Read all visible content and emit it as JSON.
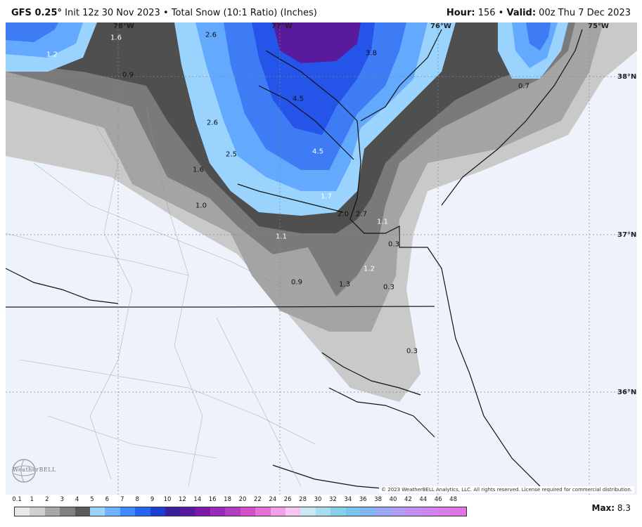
{
  "header": {
    "model": "GFS 0.25°",
    "init": "Init 12z 30 Nov 2023",
    "product": "Total Snow (10:1 Ratio) (Inches)",
    "hour_label": "Hour:",
    "hour_value": "156",
    "valid_label": "Valid:",
    "valid_value": "00z Thu 7 Dec 2023",
    "sep": "•"
  },
  "coords": {
    "lon_78": "78°W",
    "lon_76": "76°W",
    "lon_75": "75°W",
    "lon_77": "77°W",
    "lat_38": "38°N",
    "lat_37": "37°N",
    "lat_36": "36°N"
  },
  "values": [
    "1.2",
    "1.6",
    "2.6",
    "0.9",
    "3.8",
    "4.5",
    "0.7",
    "2.6",
    "2.5",
    "4.5",
    "1.6",
    "1.7",
    "1.0",
    "2.0",
    "2.7",
    "1.1",
    "1.1",
    "0.3",
    "1.2",
    "0.9",
    "1.3",
    "0.3",
    "0.3"
  ],
  "logo": "WeatherBELL",
  "copyright": "© 2023 WeatherBELL Analytics, LLC. All rights reserved. License required for commercial distribution.",
  "scale": {
    "labels": [
      "0.1",
      "1",
      "2",
      "3",
      "4",
      "5",
      "6",
      "7",
      "8",
      "9",
      "10",
      "12",
      "14",
      "16",
      "18",
      "20",
      "22",
      "24",
      "26",
      "28",
      "30",
      "32",
      "34",
      "36",
      "38",
      "40",
      "42",
      "44",
      "46",
      "48"
    ],
    "colors": [
      "#e8e8e8",
      "#cfcfcf",
      "#a8a8a8",
      "#808080",
      "#5a5a5a",
      "#9fd3ff",
      "#6fb3ff",
      "#3d8bff",
      "#2464f0",
      "#1b3fd0",
      "#3a1f9c",
      "#5a1a9e",
      "#7a1aa8",
      "#9a2ab8",
      "#b03cc0",
      "#d24fc8",
      "#e770d6",
      "#f0a0e8",
      "#f6c6f0",
      "#cde8f5",
      "#a8dcef",
      "#86d0ea",
      "#7cc4ee",
      "#86b6f2",
      "#9aa8f4",
      "#b09cf2",
      "#c190ef",
      "#cf86ec",
      "#d97de8",
      "#e074e4"
    ]
  },
  "max_label": "Max:",
  "max_value": "8.3"
}
